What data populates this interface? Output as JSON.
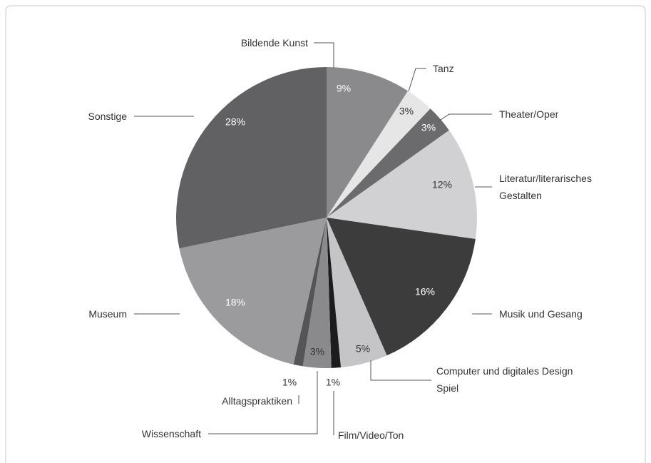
{
  "chart_data": {
    "type": "pie",
    "categories": [
      "Bildende Kunst",
      "Tanz",
      "Theater/Oper",
      "Literatur/literarisches\nGestalten",
      "Musik und Gesang",
      "Computer und digitales Design\nSpiel",
      "Film/Video/Ton",
      "Wissenschaft",
      "Alltagspraktiken",
      "Museum",
      "Sonstige"
    ],
    "values": [
      9,
      3,
      3,
      12,
      16,
      5,
      1,
      3,
      1,
      18,
      28
    ],
    "value_labels": [
      "9%",
      "3%",
      "3%",
      "12%",
      "16%",
      "5%",
      "1%",
      "3%",
      "1%",
      "18%",
      "28%"
    ],
    "colors": [
      "#8a8a8c",
      "#e6e6e6",
      "#6b6b6d",
      "#d1d1d3",
      "#3c3c3c",
      "#c5c5c7",
      "#1c1c1c",
      "#8a8a8c",
      "#555557",
      "#9b9b9d",
      "#616163"
    ]
  }
}
